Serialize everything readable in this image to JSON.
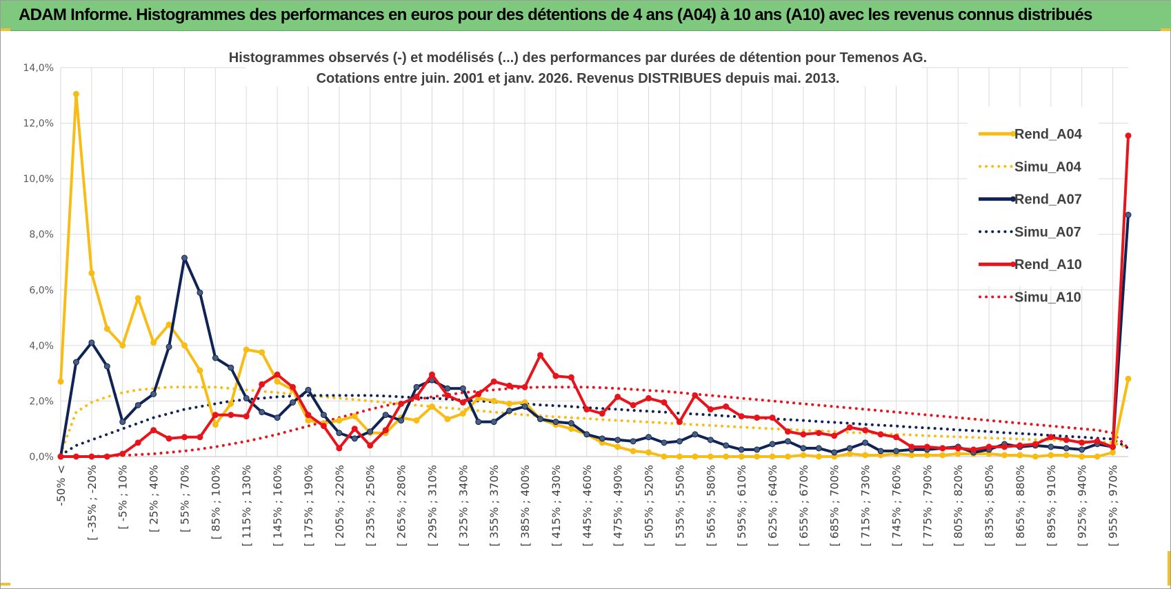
{
  "header": {
    "title": "ADAM Informe. Histogrammes des performances en euros pour des détentions de 4 ans (A04) à 10 ans (A10) avec les revenus connus distribués"
  },
  "colors": {
    "banner": "#7fc97f",
    "a04": "#f7bd16",
    "a07": "#0f2355",
    "a10": "#e8141c",
    "grid": "#d9d9d9"
  },
  "chart_data": {
    "type": "line",
    "title_lines": [
      "Histogrammes observés (-) et modélisés (...) des performances par durées de détention pour Temenos AG.",
      "Cotations entre juin. 2001 et janv. 2026. Revenus DISTRIBUES depuis mai. 2013."
    ],
    "ylim": [
      0,
      14
    ],
    "y_ticks": [
      "0,0%",
      "2,0%",
      "4,0%",
      "6,0%",
      "8,0%",
      "10,0%",
      "12,0%",
      "14,0%"
    ],
    "x_count": 70,
    "x_tick_labels": [
      "-50% <",
      "[ -35% ; -20%",
      "[ -5% ; 10%",
      "[ 25% ; 40%",
      "[ 55% ; 70%",
      "[ 85% ; 100%",
      "[ 115% ; 130%",
      "[ 145% ; 160%",
      "[ 175% ; 190%",
      "[ 205% ; 220%",
      "[ 235% ; 250%",
      "[ 265% ; 280%",
      "[ 295% ; 310%",
      "[ 325% ; 340%",
      "[ 355% ; 370%",
      "[ 385% ; 400%",
      "[ 415% ; 430%",
      "[ 445% ; 460%",
      "[ 475% ; 490%",
      "[ 505% ; 520%",
      "[ 535% ; 550%",
      "[ 565% ; 580%",
      "[ 595% ; 610%",
      "[ 625% ; 640%",
      "[ 655% ; 670%",
      "[ 685% ; 700%",
      "[ 715% ; 730%",
      "[ 745% ; 760%",
      "[ 775% ; 790%",
      "[ 805% ; 820%",
      "[ 835% ; 850%",
      "[ 865% ; 880%",
      "[ 895% ; 910%",
      "[ 925% ; 940%",
      "[ 955% ; 970%"
    ],
    "legend_position": "right",
    "series": [
      {
        "name": "Rend_A04",
        "style": "solid",
        "color": "#f7bd16",
        "values": [
          2.7,
          13.05,
          6.6,
          4.6,
          4.0,
          5.7,
          4.1,
          4.75,
          4.0,
          3.1,
          1.15,
          1.9,
          3.85,
          3.75,
          2.7,
          2.4,
          1.3,
          1.2,
          1.3,
          1.45,
          0.85,
          0.85,
          1.4,
          1.3,
          1.8,
          1.35,
          1.55,
          2.1,
          2.0,
          1.9,
          1.95,
          1.35,
          1.15,
          1.0,
          0.8,
          0.5,
          0.35,
          0.2,
          0.15,
          0.0,
          0.0,
          0.0,
          0.0,
          0.0,
          0.0,
          0.0,
          0.0,
          0.0,
          0.05,
          0.0,
          0.0,
          0.1,
          0.05,
          0.05,
          0.1,
          0.05,
          0.05,
          0.05,
          0.1,
          0.1,
          0.1,
          0.05,
          0.05,
          0.0,
          0.05,
          0.05,
          0.0,
          0.0,
          0.15,
          2.8
        ]
      },
      {
        "name": "Simu_A04",
        "style": "dotted",
        "color": "#f7bd16",
        "values": [
          0.1,
          1.6,
          1.95,
          2.15,
          2.3,
          2.4,
          2.45,
          2.5,
          2.5,
          2.5,
          2.5,
          2.45,
          2.4,
          2.35,
          2.3,
          2.25,
          2.2,
          2.15,
          2.1,
          2.05,
          2.0,
          1.95,
          1.9,
          1.85,
          1.8,
          1.75,
          1.7,
          1.65,
          1.6,
          1.55,
          1.5,
          1.47,
          1.43,
          1.4,
          1.37,
          1.33,
          1.3,
          1.27,
          1.24,
          1.21,
          1.18,
          1.15,
          1.12,
          1.09,
          1.06,
          1.03,
          1.0,
          0.98,
          0.95,
          0.92,
          0.9,
          0.87,
          0.85,
          0.82,
          0.8,
          0.78,
          0.75,
          0.73,
          0.71,
          0.69,
          0.67,
          0.65,
          0.63,
          0.61,
          0.59,
          0.57,
          0.55,
          0.53,
          0.51,
          0.3
        ]
      },
      {
        "name": "Rend_A07",
        "style": "solid",
        "color": "#0f2355",
        "values": [
          0.0,
          3.4,
          4.1,
          3.25,
          1.25,
          1.85,
          2.25,
          3.95,
          7.15,
          5.9,
          3.55,
          3.2,
          2.1,
          1.6,
          1.4,
          1.95,
          2.4,
          1.5,
          0.85,
          0.65,
          0.9,
          1.5,
          1.3,
          2.5,
          2.75,
          2.45,
          2.45,
          1.25,
          1.25,
          1.65,
          1.8,
          1.35,
          1.25,
          1.2,
          0.8,
          0.65,
          0.6,
          0.55,
          0.7,
          0.5,
          0.55,
          0.8,
          0.6,
          0.4,
          0.25,
          0.25,
          0.45,
          0.55,
          0.3,
          0.3,
          0.15,
          0.3,
          0.5,
          0.2,
          0.2,
          0.25,
          0.25,
          0.3,
          0.35,
          0.15,
          0.25,
          0.45,
          0.35,
          0.4,
          0.35,
          0.3,
          0.25,
          0.45,
          0.35,
          8.7
        ]
      },
      {
        "name": "Simu_A07",
        "style": "dotted",
        "color": "#0f2355",
        "values": [
          0.05,
          0.4,
          0.6,
          0.8,
          1.0,
          1.2,
          1.4,
          1.55,
          1.7,
          1.8,
          1.9,
          2.0,
          2.05,
          2.1,
          2.15,
          2.18,
          2.2,
          2.2,
          2.2,
          2.2,
          2.2,
          2.18,
          2.15,
          2.12,
          2.1,
          2.07,
          2.03,
          2.0,
          1.97,
          1.93,
          1.9,
          1.86,
          1.83,
          1.8,
          1.76,
          1.73,
          1.7,
          1.66,
          1.63,
          1.6,
          1.56,
          1.53,
          1.5,
          1.46,
          1.43,
          1.4,
          1.36,
          1.33,
          1.3,
          1.26,
          1.23,
          1.2,
          1.16,
          1.13,
          1.1,
          1.06,
          1.03,
          1.0,
          0.96,
          0.93,
          0.9,
          0.86,
          0.83,
          0.8,
          0.76,
          0.73,
          0.7,
          0.66,
          0.63,
          0.3
        ]
      },
      {
        "name": "Rend_A10",
        "style": "solid",
        "color": "#e8141c",
        "values": [
          0.0,
          0.0,
          0.0,
          0.0,
          0.1,
          0.5,
          0.95,
          0.65,
          0.7,
          0.7,
          1.5,
          1.5,
          1.45,
          2.6,
          2.95,
          2.5,
          1.5,
          1.1,
          0.3,
          1.0,
          0.4,
          0.95,
          1.9,
          2.15,
          2.95,
          2.2,
          1.95,
          2.25,
          2.7,
          2.55,
          2.5,
          3.65,
          2.9,
          2.85,
          1.7,
          1.55,
          2.15,
          1.85,
          2.1,
          1.95,
          1.25,
          2.2,
          1.7,
          1.8,
          1.45,
          1.4,
          1.4,
          0.9,
          0.8,
          0.85,
          0.75,
          1.05,
          0.95,
          0.8,
          0.7,
          0.35,
          0.35,
          0.3,
          0.3,
          0.25,
          0.35,
          0.35,
          0.4,
          0.45,
          0.7,
          0.6,
          0.5,
          0.55,
          0.35,
          11.55
        ]
      },
      {
        "name": "Simu_A10",
        "style": "dotted",
        "color": "#e8141c",
        "values": [
          0.0,
          0.0,
          0.01,
          0.02,
          0.04,
          0.07,
          0.1,
          0.15,
          0.2,
          0.27,
          0.35,
          0.45,
          0.55,
          0.67,
          0.8,
          0.95,
          1.1,
          1.25,
          1.4,
          1.55,
          1.7,
          1.83,
          1.95,
          2.05,
          2.15,
          2.22,
          2.3,
          2.35,
          2.4,
          2.45,
          2.48,
          2.5,
          2.5,
          2.5,
          2.5,
          2.48,
          2.45,
          2.42,
          2.38,
          2.35,
          2.3,
          2.25,
          2.2,
          2.15,
          2.1,
          2.05,
          2.0,
          1.95,
          1.9,
          1.85,
          1.8,
          1.75,
          1.7,
          1.65,
          1.6,
          1.55,
          1.5,
          1.45,
          1.4,
          1.35,
          1.3,
          1.25,
          1.2,
          1.15,
          1.1,
          1.05,
          1.0,
          0.95,
          0.85,
          0.3
        ]
      }
    ]
  }
}
